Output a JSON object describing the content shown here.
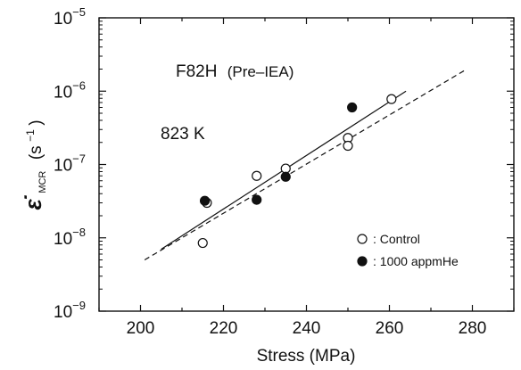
{
  "chart_data": {
    "type": "scatter",
    "title": "",
    "xlabel": "Stress  (MPa)",
    "ylabel": {
      "symbol": "ε̇",
      "subscript": "MCR",
      "unit_base": "(s",
      "unit_exp": "−1",
      "unit_close": ")"
    },
    "xlim": [
      190,
      290
    ],
    "ylim": [
      1e-09,
      1e-05
    ],
    "y_scale": "log",
    "grid": false,
    "x_ticks": [
      "200",
      "220",
      "240",
      "260",
      "280"
    ],
    "x_tick_values": [
      200,
      220,
      240,
      260,
      280
    ],
    "y_ticks": [
      {
        "value": 1e-05,
        "base": "10",
        "exp": "−5"
      },
      {
        "value": 1e-06,
        "base": "10",
        "exp": "−6"
      },
      {
        "value": 1e-07,
        "base": "10",
        "exp": "−7"
      },
      {
        "value": 1e-08,
        "base": "10",
        "exp": "−8"
      },
      {
        "value": 1e-09,
        "base": "10",
        "exp": "−9"
      }
    ],
    "annotations": {
      "material": "F82H",
      "material_note": "(Pre–IEA)",
      "temperature": "823 K"
    },
    "legend_position": "bottom-right",
    "series": [
      {
        "name": "Control",
        "legend_label": ": Control",
        "marker": "open-circle",
        "points": [
          {
            "x": 215,
            "y": 8.5e-09
          },
          {
            "x": 216,
            "y": 3e-08
          },
          {
            "x": 228,
            "y": 7e-08
          },
          {
            "x": 235,
            "y": 8.8e-08
          },
          {
            "x": 250,
            "y": 2.3e-07
          },
          {
            "x": 250,
            "y": 1.8e-07
          },
          {
            "x": 260.5,
            "y": 7.8e-07
          }
        ]
      },
      {
        "name": "1000 appmHe",
        "legend_label": ": 1000 appmHe",
        "marker": "filled-circle",
        "points": [
          {
            "x": 215.5,
            "y": 3.2e-08
          },
          {
            "x": 228,
            "y": 3.3e-08
          },
          {
            "x": 235,
            "y": 6.8e-08
          },
          {
            "x": 251,
            "y": 6e-07
          }
        ]
      }
    ],
    "fit_lines": [
      {
        "style": "solid",
        "x": [
          205,
          264
        ],
        "y": [
          7e-09,
          1e-06
        ]
      },
      {
        "style": "dashed",
        "x": [
          201,
          278
        ],
        "y": [
          5e-09,
          1.9e-06
        ]
      }
    ]
  }
}
